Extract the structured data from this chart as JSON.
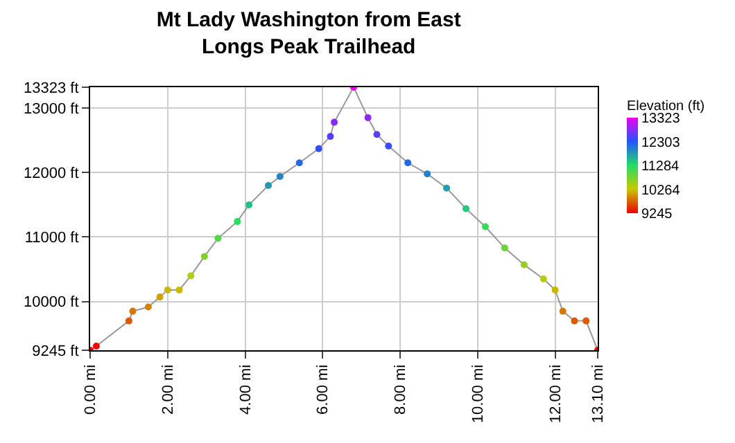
{
  "chart_data": {
    "type": "line",
    "title": "Mt Lady Washington from East\nLongs Peak Trailhead",
    "clabel": "Elevation (ft)",
    "x": [
      0,
      0.16,
      1.0,
      1.1,
      1.5,
      1.8,
      2.0,
      2.3,
      2.6,
      2.95,
      3.3,
      3.8,
      4.1,
      4.6,
      4.9,
      5.4,
      5.9,
      6.2,
      6.3,
      6.8,
      7.17,
      7.4,
      7.7,
      8.2,
      8.7,
      9.2,
      9.7,
      10.2,
      10.7,
      11.2,
      11.7,
      12.0,
      12.2,
      12.5,
      12.8,
      13.1
    ],
    "values": [
      9245,
      9310,
      9700,
      9850,
      9915,
      10070,
      10180,
      10180,
      10400,
      10700,
      10980,
      11240,
      11500,
      11800,
      11940,
      12150,
      12370,
      12560,
      12780,
      13323,
      12850,
      12590,
      12410,
      12150,
      11980,
      11760,
      11440,
      11160,
      10830,
      10570,
      10350,
      10180,
      9850,
      9700,
      9700,
      9245
    ],
    "clim": [
      9245,
      13323
    ],
    "cticks": [
      9245,
      10264,
      11284,
      12303,
      13323
    ],
    "xlim": [
      0,
      13.1
    ],
    "xticks": [
      {
        "value": 0,
        "label": "0.00 mi"
      },
      {
        "value": 2,
        "label": "2.00 mi"
      },
      {
        "value": 4,
        "label": "4.00 mi"
      },
      {
        "value": 6,
        "label": "6.00 mi"
      },
      {
        "value": 8,
        "label": "8.00 mi"
      },
      {
        "value": 10,
        "label": "10.00 mi"
      },
      {
        "value": 12,
        "label": "12.00 mi"
      },
      {
        "value": 13.1,
        "label": "13.10 mi"
      }
    ],
    "ylim": [
      9245,
      13323
    ],
    "yticks": [
      {
        "value": 9245,
        "label": "9245 ft"
      },
      {
        "value": 10000,
        "label": "10000 ft"
      },
      {
        "value": 11000,
        "label": "11000 ft"
      },
      {
        "value": 12000,
        "label": "12000 ft"
      },
      {
        "value": 13000,
        "label": "13000 ft"
      },
      {
        "value": 13323,
        "label": "13323 ft"
      }
    ],
    "grid": true,
    "marker": "circle"
  }
}
